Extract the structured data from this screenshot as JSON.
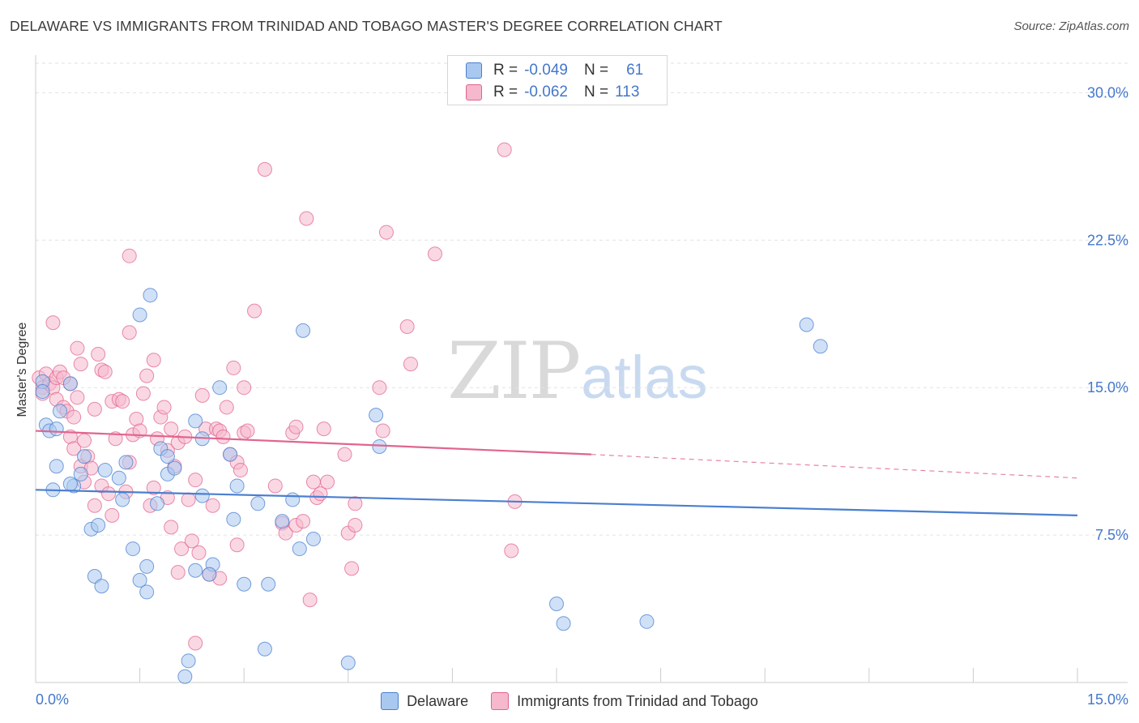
{
  "title": "DELAWARE VS IMMIGRANTS FROM TRINIDAD AND TOBAGO MASTER'S DEGREE CORRELATION CHART",
  "source": "Source: ZipAtlas.com",
  "watermark": {
    "zip": "ZIP",
    "atlas": "atlas"
  },
  "legend": {
    "rows": [
      {
        "r_label": "R =",
        "r_value": "-0.049",
        "n_label": "N =",
        "n_value": "61",
        "color": "#a9c8f0"
      },
      {
        "r_label": "R =",
        "r_value": "-0.062",
        "n_label": "N =",
        "n_value": "113",
        "color": "#f5b8cc"
      }
    ]
  },
  "bottom_legend": [
    {
      "label": "Delaware",
      "color": "#a9c8f0"
    },
    {
      "label": "Immigrants from Trinidad and Tobago",
      "color": "#f5b8cc"
    }
  ],
  "chart_data": {
    "type": "scatter",
    "title": "DELAWARE VS IMMIGRANTS FROM TRINIDAD AND TOBAGO MASTER'S DEGREE CORRELATION CHART",
    "xlabel": "",
    "ylabel": "Master's Degree",
    "xlim": [
      0,
      15
    ],
    "ylim": [
      0,
      31.5
    ],
    "x_tick_labels": [
      "0.0%",
      "15.0%"
    ],
    "y_ticks": [
      7.5,
      15.0,
      22.5,
      30.0
    ],
    "y_tick_labels": [
      "7.5%",
      "15.0%",
      "22.5%",
      "30.0%"
    ],
    "grid": true,
    "legend_position": "top-center",
    "series": [
      {
        "name": "Delaware",
        "color": "#4a7fd0",
        "fill": "#a9c8f0",
        "trend": {
          "x": [
            0,
            15
          ],
          "y": [
            9.8,
            8.5
          ]
        },
        "points": [
          [
            0.1,
            15.3
          ],
          [
            0.1,
            14.8
          ],
          [
            0.15,
            13.1
          ],
          [
            0.2,
            12.8
          ],
          [
            0.3,
            12.9
          ],
          [
            0.35,
            13.8
          ],
          [
            0.5,
            15.2
          ],
          [
            0.3,
            11.0
          ],
          [
            0.25,
            9.8
          ],
          [
            0.55,
            10.0
          ],
          [
            0.5,
            10.1
          ],
          [
            0.65,
            10.6
          ],
          [
            0.7,
            11.5
          ],
          [
            1.0,
            10.8
          ],
          [
            1.2,
            10.4
          ],
          [
            1.25,
            9.3
          ],
          [
            1.3,
            11.2
          ],
          [
            1.5,
            18.7
          ],
          [
            1.65,
            19.7
          ],
          [
            0.8,
            7.8
          ],
          [
            0.9,
            8.0
          ],
          [
            0.85,
            5.4
          ],
          [
            0.95,
            4.9
          ],
          [
            1.4,
            6.8
          ],
          [
            1.5,
            5.2
          ],
          [
            1.6,
            5.9
          ],
          [
            1.6,
            4.6
          ],
          [
            1.8,
            11.9
          ],
          [
            1.75,
            9.1
          ],
          [
            1.9,
            11.5
          ],
          [
            1.9,
            10.6
          ],
          [
            2.0,
            10.9
          ],
          [
            2.3,
            5.7
          ],
          [
            2.4,
            12.4
          ],
          [
            2.3,
            13.3
          ],
          [
            2.4,
            9.5
          ],
          [
            2.55,
            6.0
          ],
          [
            2.5,
            5.5
          ],
          [
            2.65,
            15.0
          ],
          [
            2.8,
            11.6
          ],
          [
            2.9,
            10.0
          ],
          [
            2.85,
            8.3
          ],
          [
            3.0,
            5.0
          ],
          [
            3.2,
            9.1
          ],
          [
            3.55,
            8.2
          ],
          [
            3.7,
            9.3
          ],
          [
            3.8,
            6.8
          ],
          [
            3.85,
            17.9
          ],
          [
            4.0,
            7.3
          ],
          [
            3.35,
            5.0
          ],
          [
            3.3,
            1.7
          ],
          [
            2.2,
            1.1
          ],
          [
            2.15,
            0.3
          ],
          [
            4.5,
            1.0
          ],
          [
            4.9,
            13.6
          ],
          [
            4.95,
            12.0
          ],
          [
            7.5,
            4.0
          ],
          [
            7.6,
            3.0
          ],
          [
            8.8,
            3.1
          ],
          [
            11.1,
            18.2
          ],
          [
            11.3,
            17.1
          ]
        ]
      },
      {
        "name": "Immigrants from Trinidad and Tobago",
        "color": "#e0658f",
        "fill": "#f5b8cc",
        "trend": {
          "x": [
            0,
            8.0
          ],
          "y": [
            12.8,
            11.6
          ]
        },
        "trend_dashed": {
          "x": [
            8.0,
            15
          ],
          "y": [
            11.6,
            10.4
          ]
        },
        "points": [
          [
            0.05,
            15.5
          ],
          [
            0.1,
            15.0
          ],
          [
            0.15,
            15.7
          ],
          [
            0.1,
            14.7
          ],
          [
            0.2,
            15.2
          ],
          [
            0.25,
            15.0
          ],
          [
            0.3,
            15.5
          ],
          [
            0.35,
            15.8
          ],
          [
            0.3,
            14.4
          ],
          [
            0.4,
            14.0
          ],
          [
            0.45,
            13.8
          ],
          [
            0.5,
            15.2
          ],
          [
            0.25,
            18.3
          ],
          [
            0.6,
            17.0
          ],
          [
            0.55,
            13.5
          ],
          [
            0.65,
            16.2
          ],
          [
            0.6,
            14.5
          ],
          [
            0.5,
            12.5
          ],
          [
            0.55,
            11.9
          ],
          [
            0.65,
            11.0
          ],
          [
            0.7,
            12.3
          ],
          [
            0.75,
            11.5
          ],
          [
            0.8,
            10.9
          ],
          [
            0.85,
            13.9
          ],
          [
            0.9,
            16.7
          ],
          [
            0.95,
            15.9
          ],
          [
            1.0,
            15.8
          ],
          [
            0.7,
            10.2
          ],
          [
            0.85,
            9.0
          ],
          [
            0.95,
            10.0
          ],
          [
            1.1,
            14.3
          ],
          [
            1.15,
            12.4
          ],
          [
            1.2,
            14.4
          ],
          [
            1.25,
            14.3
          ],
          [
            1.05,
            9.6
          ],
          [
            1.1,
            8.5
          ],
          [
            1.3,
            9.7
          ],
          [
            1.35,
            11.2
          ],
          [
            1.4,
            12.6
          ],
          [
            1.45,
            13.4
          ],
          [
            1.5,
            12.8
          ],
          [
            1.35,
            17.8
          ],
          [
            1.55,
            14.7
          ],
          [
            1.6,
            15.6
          ],
          [
            1.65,
            9.0
          ],
          [
            1.7,
            9.9
          ],
          [
            1.75,
            12.4
          ],
          [
            1.7,
            16.4
          ],
          [
            1.8,
            13.5
          ],
          [
            1.85,
            14.0
          ],
          [
            1.9,
            11.8
          ],
          [
            1.95,
            7.9
          ],
          [
            1.9,
            9.4
          ],
          [
            1.95,
            12.9
          ],
          [
            2.0,
            11.0
          ],
          [
            2.05,
            12.2
          ],
          [
            2.05,
            5.6
          ],
          [
            2.1,
            6.8
          ],
          [
            2.15,
            12.5
          ],
          [
            2.2,
            9.3
          ],
          [
            2.25,
            7.2
          ],
          [
            2.3,
            10.3
          ],
          [
            2.35,
            6.6
          ],
          [
            2.4,
            14.6
          ],
          [
            2.45,
            12.9
          ],
          [
            2.5,
            5.5
          ],
          [
            2.6,
            12.9
          ],
          [
            2.55,
            9.0
          ],
          [
            2.65,
            12.8
          ],
          [
            2.7,
            12.5
          ],
          [
            2.65,
            5.3
          ],
          [
            2.75,
            14.0
          ],
          [
            2.8,
            11.6
          ],
          [
            2.85,
            16.0
          ],
          [
            2.9,
            11.2
          ],
          [
            2.95,
            10.8
          ],
          [
            3.0,
            15.0
          ],
          [
            3.0,
            12.7
          ],
          [
            3.05,
            12.8
          ],
          [
            2.9,
            7.0
          ],
          [
            3.15,
            18.9
          ],
          [
            3.3,
            26.1
          ],
          [
            3.45,
            10.0
          ],
          [
            3.55,
            8.1
          ],
          [
            3.6,
            7.6
          ],
          [
            3.7,
            12.7
          ],
          [
            3.75,
            13.0
          ],
          [
            3.75,
            8.0
          ],
          [
            3.85,
            8.2
          ],
          [
            3.95,
            4.2
          ],
          [
            4.0,
            10.2
          ],
          [
            4.05,
            9.4
          ],
          [
            4.1,
            9.6
          ],
          [
            4.15,
            12.9
          ],
          [
            4.2,
            10.2
          ],
          [
            3.9,
            23.6
          ],
          [
            4.45,
            11.6
          ],
          [
            4.5,
            7.6
          ],
          [
            4.55,
            5.8
          ],
          [
            4.6,
            9.1
          ],
          [
            4.6,
            8.0
          ],
          [
            4.95,
            15.0
          ],
          [
            5.0,
            12.8
          ],
          [
            5.05,
            22.9
          ],
          [
            5.35,
            18.1
          ],
          [
            5.4,
            16.2
          ],
          [
            5.75,
            21.8
          ],
          [
            6.75,
            27.1
          ],
          [
            6.9,
            9.2
          ],
          [
            6.85,
            6.7
          ],
          [
            1.35,
            21.7
          ],
          [
            0.4,
            15.5
          ],
          [
            2.3,
            2.0
          ]
        ]
      }
    ]
  }
}
